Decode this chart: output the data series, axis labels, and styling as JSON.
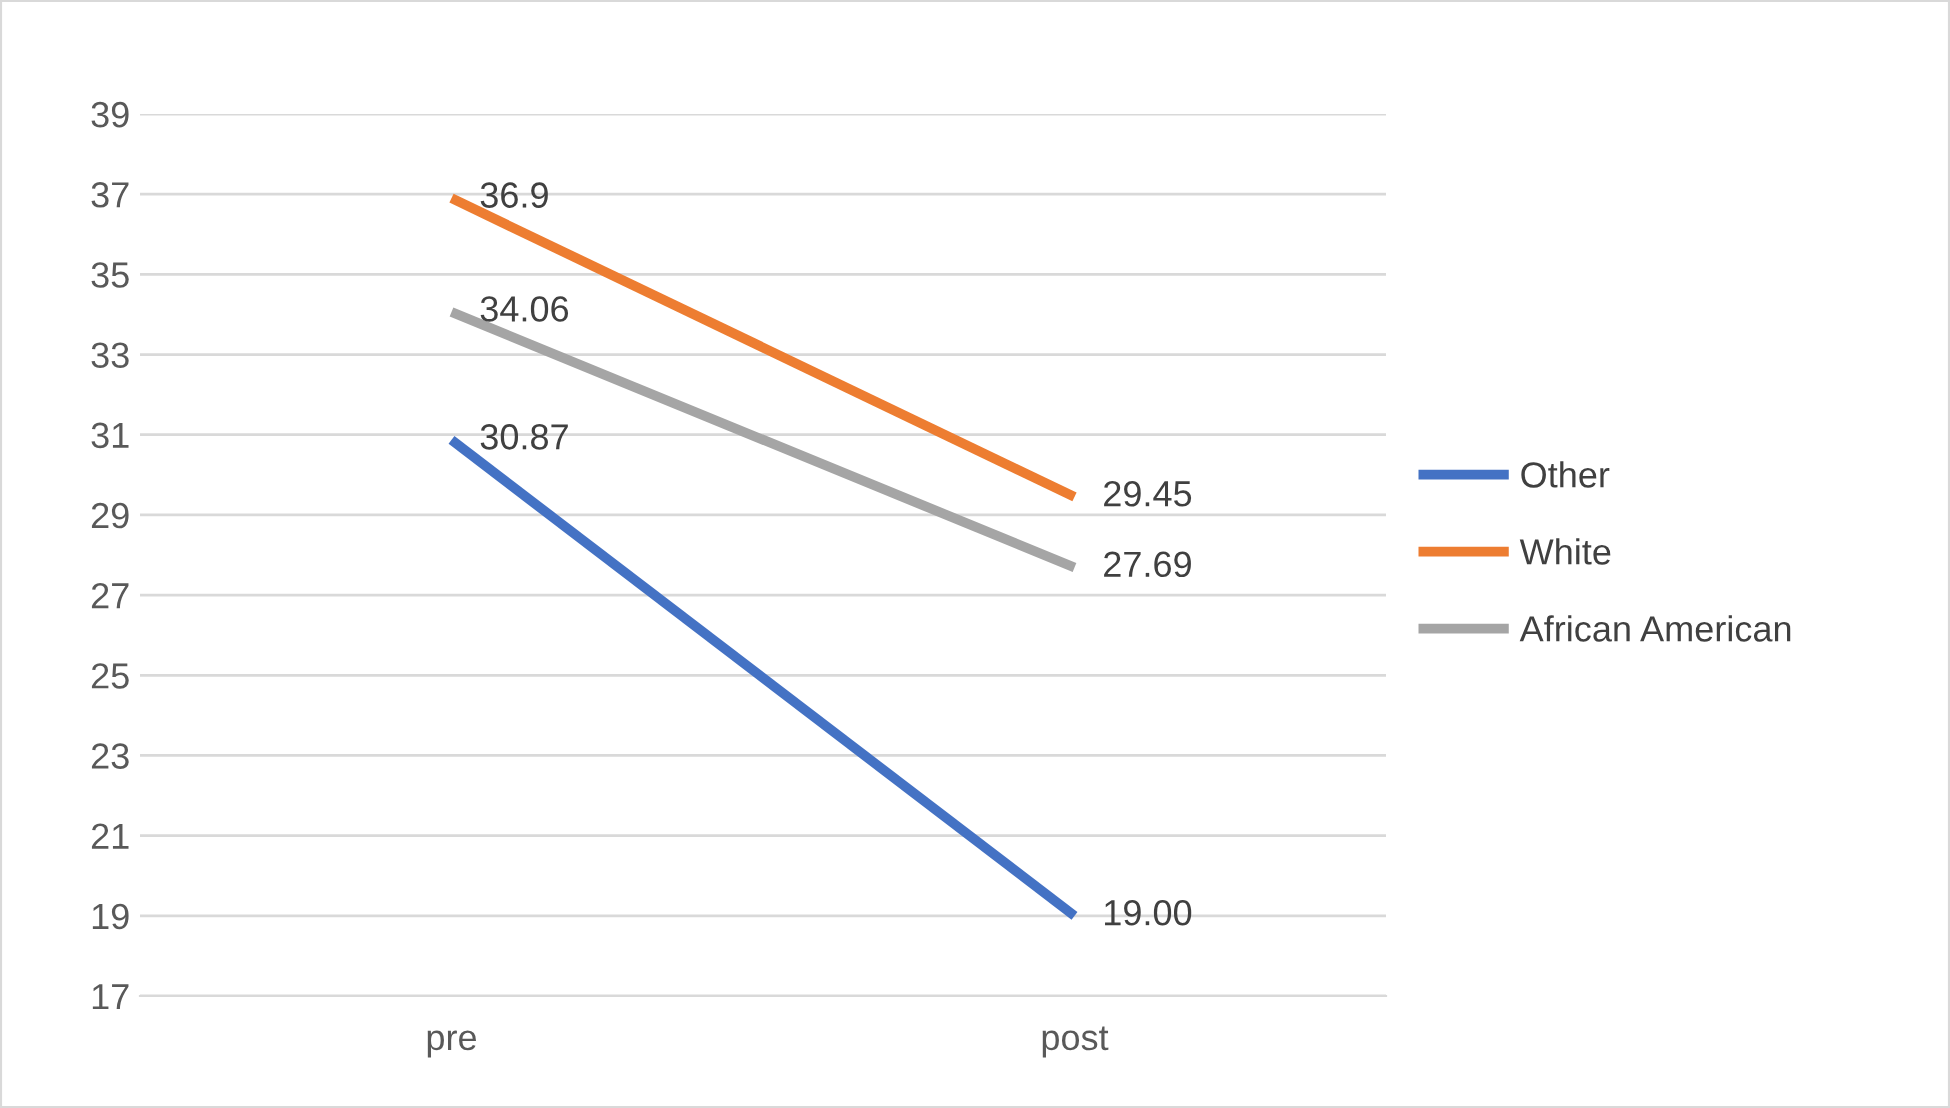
{
  "chart_data": {
    "type": "line",
    "categories": [
      "pre",
      "post"
    ],
    "series": [
      {
        "name": "Other",
        "color": "#4472c4",
        "values": [
          30.87,
          19.0
        ],
        "value_labels": [
          "30.87",
          "19.00"
        ]
      },
      {
        "name": "White",
        "color": "#ed7d31",
        "values": [
          36.9,
          29.45
        ],
        "value_labels": [
          "36.9",
          "29.45"
        ]
      },
      {
        "name": "African American",
        "color": "#a5a5a5",
        "values": [
          34.06,
          27.69
        ],
        "value_labels": [
          "34.06",
          "27.69"
        ]
      }
    ],
    "ylim": [
      17,
      39
    ],
    "yticks": [
      17,
      19,
      21,
      23,
      25,
      27,
      29,
      31,
      33,
      35,
      37,
      39
    ],
    "grid": "y",
    "legend": "right",
    "marker": "none",
    "line_style": "solid"
  }
}
